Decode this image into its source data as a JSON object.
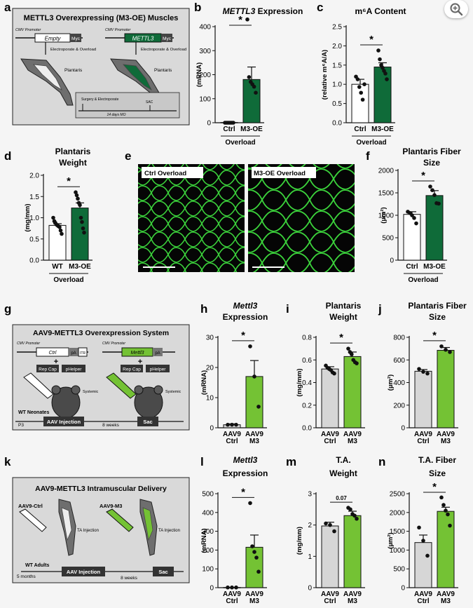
{
  "panel_letters": [
    "a",
    "b",
    "c",
    "d",
    "e",
    "f",
    "g",
    "h",
    "i",
    "j",
    "k",
    "l",
    "m",
    "n"
  ],
  "colors": {
    "dark_green": "#0f6b39",
    "light_green": "#74c234",
    "ctrl_gray": "#d6d6d6",
    "photo_green": "#3bd33b"
  },
  "icons": {
    "zoom": "zoom-in-magnifier-icon"
  },
  "panel_a": {
    "title": "METTL3 Overexpressing (M3-OE) Muscles",
    "promoter": "CMV Promoter",
    "empty_label": "Empty",
    "mettl3_label": "METTL3",
    "tag": "Myc",
    "action": "Electroporate & Overload",
    "muscle": "Plantaris",
    "timeline_start": "Surgery & Electroporate",
    "timeline_end": "SAC",
    "timeline_span": "14 days MO"
  },
  "panel_e": {
    "left_label": "Ctrl Overload",
    "right_label": "M3-OE Overload"
  },
  "panel_g": {
    "title": "AAV9-METTL3 Overexpression System",
    "promoter": "CMV Promoter",
    "ctrl_gene": "Ctrl",
    "mettl3_gene": "Mettl3",
    "pa": "pA",
    "itr": "ITR",
    "rep_cap": "Rep Cap",
    "phelper": "pHelper",
    "plus": "+",
    "systemic": "Systemic",
    "subjects": "WT Neonates",
    "age": "P3",
    "injection": "AAV Injection",
    "duration": "8 weeks",
    "end": "Sac"
  },
  "panel_k": {
    "title": "AAV9-METTL3 Intramuscular Delivery",
    "ctrl": "AAV9-Ctrl",
    "m3": "AAV9-M3",
    "ta_injection": "TA Injection",
    "subjects": "WT Adults",
    "age": "5 months",
    "injection": "AAV Injection",
    "duration": "8 weeks",
    "end": "Sac"
  },
  "chart_data": [
    {
      "panel": "b",
      "type": "bar",
      "title": "METTL3 Expression",
      "title_italic_part": "METTL3",
      "ylabel": "(mRNA)",
      "categories": [
        "Ctrl",
        "M3-OE"
      ],
      "group_label": "Overload",
      "values": [
        1,
        180
      ],
      "errors": [
        0.5,
        52
      ],
      "points": [
        [
          0,
          0,
          0,
          0,
          0,
          0,
          0
        ],
        [
          430,
          190,
          170,
          160,
          150,
          125
        ]
      ],
      "ylim": [
        0,
        400
      ],
      "yticks": [
        0,
        100,
        200,
        300,
        400
      ],
      "significance": "*",
      "colors": [
        "#ffffff",
        "#0f6b39"
      ]
    },
    {
      "panel": "c",
      "type": "bar",
      "title": "m⁶A Content",
      "ylabel": "(relative m⁶A/A)",
      "categories": [
        "Ctrl",
        "M3-OE"
      ],
      "group_label": "Overload",
      "values": [
        1.0,
        1.45
      ],
      "errors": [
        0.13,
        0.11
      ],
      "points": [
        [
          1.2,
          1.13,
          0.93,
          0.78,
          0.6,
          1.0
        ],
        [
          1.88,
          1.65,
          1.5,
          1.43,
          1.35,
          1.28,
          1.13
        ]
      ],
      "ylim": [
        0,
        2.5
      ],
      "yticks": [
        0.0,
        0.5,
        1.0,
        1.5,
        2.0,
        2.5
      ],
      "significance": "*",
      "colors": [
        "#ffffff",
        "#0f6b39"
      ]
    },
    {
      "panel": "d",
      "type": "bar",
      "title": "Plantaris Weight",
      "ylabel": "(mg/mm)",
      "categories": [
        "WT",
        "M3-OE"
      ],
      "group_label": "Overload",
      "values": [
        0.82,
        1.23
      ],
      "errors": [
        0.04,
        0.12
      ],
      "points": [
        [
          1.0,
          0.92,
          0.88,
          0.84,
          0.82,
          0.8,
          0.78,
          0.7,
          0.62
        ],
        [
          1.6,
          1.53,
          1.45,
          1.35,
          1.3,
          1.0,
          0.9,
          0.75,
          0.65
        ]
      ],
      "ylim": [
        0,
        2.0
      ],
      "yticks": [
        0.0,
        0.5,
        1.0,
        1.5,
        2.0
      ],
      "significance": "*",
      "colors": [
        "#ffffff",
        "#0f6b39"
      ]
    },
    {
      "panel": "f",
      "type": "bar",
      "title": "Plantaris Fiber Size",
      "ylabel": "(µm²)",
      "categories": [
        "Ctrl",
        "M3-OE"
      ],
      "group_label": "Overload",
      "values": [
        1020,
        1440
      ],
      "errors": [
        60,
        110
      ],
      "points": [
        [
          1080,
          1050,
          1000,
          940,
          820
        ],
        [
          1640,
          1560,
          1450,
          1270,
          1260
        ]
      ],
      "ylim": [
        0,
        2000
      ],
      "yticks": [
        0,
        500,
        1000,
        1500,
        2000
      ],
      "significance": "*",
      "colors": [
        "#ffffff",
        "#0f6b39"
      ]
    },
    {
      "panel": "h",
      "type": "bar",
      "title": "Mettl3 Expression",
      "title_italic_part": "Mettl3",
      "ylabel": "(mRNA)",
      "categories": [
        "AAV9 Ctrl",
        "AAV9 M3"
      ],
      "values": [
        1,
        17
      ],
      "errors": [
        0.3,
        5.3
      ],
      "points": [
        [
          1,
          1,
          1
        ],
        [
          27,
          17,
          7
        ]
      ],
      "ylim": [
        0,
        30
      ],
      "yticks": [
        0,
        10,
        20,
        30
      ],
      "significance": "*",
      "colors": [
        "#d6d6d6",
        "#74c234"
      ]
    },
    {
      "panel": "i",
      "type": "bar",
      "title": "Plantaris Weight",
      "ylabel": "(mg/mm)",
      "categories": [
        "AAV9 Ctrl",
        "AAV9 M3"
      ],
      "values": [
        0.52,
        0.63
      ],
      "errors": [
        0.02,
        0.04
      ],
      "points": [
        [
          0.55,
          0.53,
          0.52,
          0.51,
          0.49,
          0.48
        ],
        [
          0.7,
          0.67,
          0.65,
          0.6,
          0.58,
          0.57
        ]
      ],
      "ylim": [
        0,
        0.8
      ],
      "yticks": [
        0.0,
        0.2,
        0.4,
        0.6,
        0.8
      ],
      "significance": "*",
      "colors": [
        "#d6d6d6",
        "#74c234"
      ]
    },
    {
      "panel": "j",
      "type": "bar",
      "title": "Plantaris Fiber Size",
      "ylabel": "(µm²)",
      "categories": [
        "AAV9 Ctrl",
        "AAV9 M3"
      ],
      "values": [
        500,
        685
      ],
      "errors": [
        15,
        25
      ],
      "points": [
        [
          520,
          495,
          480
        ],
        [
          720,
          690,
          670
        ]
      ],
      "ylim": [
        0,
        800
      ],
      "yticks": [
        0,
        200,
        400,
        600,
        800
      ],
      "significance": "*",
      "colors": [
        "#d6d6d6",
        "#74c234"
      ]
    },
    {
      "panel": "l",
      "type": "bar",
      "title": "Mettl3 Expression",
      "title_italic_part": "Mettl3",
      "ylabel": "(mRNA)",
      "categories": [
        "AAV9 Ctrl",
        "AAV9 M3"
      ],
      "values": [
        1,
        215
      ],
      "errors": [
        0.5,
        65
      ],
      "points": [
        [
          1,
          1,
          1
        ],
        [
          450,
          220,
          190,
          160,
          85
        ]
      ],
      "ylim": [
        0,
        500
      ],
      "yticks": [
        0,
        100,
        200,
        300,
        400,
        500
      ],
      "significance": "*",
      "colors": [
        "#d6d6d6",
        "#74c234"
      ]
    },
    {
      "panel": "m",
      "type": "bar",
      "title": "T.A. Weight",
      "ylabel": "(mg/mm)",
      "categories": [
        "AAV9 Ctrl",
        "AAV9 M3"
      ],
      "values": [
        1.97,
        2.3
      ],
      "errors": [
        0.12,
        0.14
      ],
      "points": [
        [
          2.05,
          2.0,
          1.8
        ],
        [
          2.55,
          2.5,
          2.35,
          2.3,
          2.2
        ]
      ],
      "ylim": [
        0,
        3
      ],
      "yticks": [
        0,
        1,
        2,
        3
      ],
      "significance": "0.07",
      "colors": [
        "#d6d6d6",
        "#74c234"
      ]
    },
    {
      "panel": "n",
      "type": "bar",
      "title": "T.A. Fiber Size",
      "ylabel": "(µm²)",
      "categories": [
        "AAV9 Ctrl",
        "AAV9 M3"
      ],
      "values": [
        1200,
        2030
      ],
      "errors": [
        200,
        110
      ],
      "points": [
        [
          1600,
          1250,
          850
        ],
        [
          2400,
          2200,
          2050,
          1950,
          1650
        ]
      ],
      "ylim": [
        0,
        2500
      ],
      "yticks": [
        0,
        500,
        1000,
        1500,
        2000,
        2500
      ],
      "significance": "*",
      "colors": [
        "#d6d6d6",
        "#74c234"
      ]
    }
  ]
}
